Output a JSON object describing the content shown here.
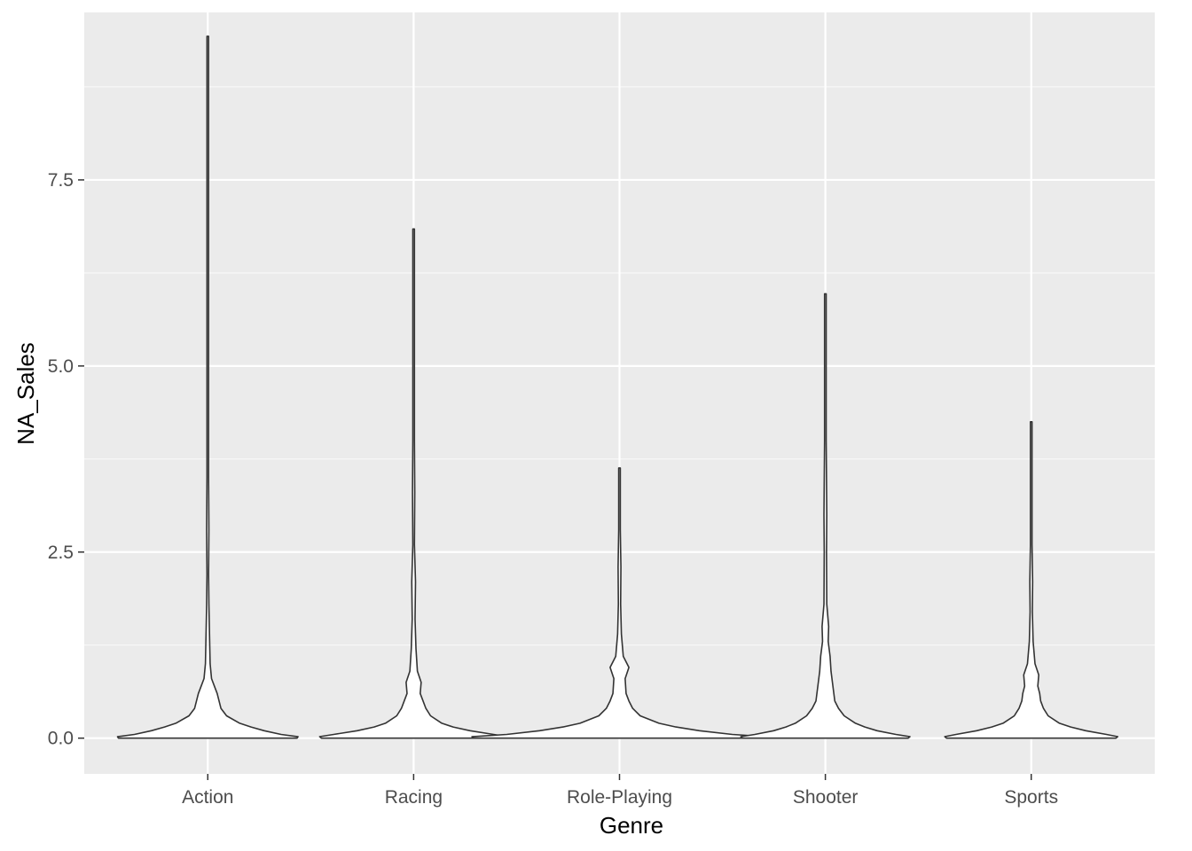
{
  "chart_data": {
    "type": "violin",
    "xlabel": "Genre",
    "ylabel": "NA_Sales",
    "ylim": [
      -0.48,
      9.75
    ],
    "y_ticks": [
      0.0,
      2.5,
      5.0,
      7.5
    ],
    "y_tick_labels": [
      "0.0",
      "2.5",
      "5.0",
      "7.5"
    ],
    "grid": true,
    "legend": "none",
    "colors": {
      "panel_bg": "#ebebeb",
      "grid_major": "#ffffff",
      "violin_fill": "#ffffff",
      "violin_stroke": "#333333",
      "tick_label": "#4d4d4d"
    },
    "categories": [
      "Action",
      "Racing",
      "Role-Playing",
      "Shooter",
      "Sports"
    ],
    "violins": [
      {
        "category": "Action",
        "y_min": 0.0,
        "y_max": 9.43,
        "profile": [
          [
            0.0,
            0.95
          ],
          [
            0.02,
            0.96
          ],
          [
            0.05,
            0.78
          ],
          [
            0.1,
            0.6
          ],
          [
            0.15,
            0.46
          ],
          [
            0.2,
            0.34
          ],
          [
            0.3,
            0.2
          ],
          [
            0.4,
            0.14
          ],
          [
            0.5,
            0.12
          ],
          [
            0.6,
            0.1
          ],
          [
            0.7,
            0.07
          ],
          [
            0.8,
            0.04
          ],
          [
            1.0,
            0.025
          ],
          [
            1.3,
            0.02
          ],
          [
            1.8,
            0.012
          ],
          [
            2.2,
            0.008
          ],
          [
            2.8,
            0.012
          ],
          [
            3.5,
            0.004
          ],
          [
            5.0,
            0.003
          ],
          [
            7.0,
            0.003
          ],
          [
            9.43,
            0.002
          ]
        ]
      },
      {
        "category": "Racing",
        "y_min": 0.0,
        "y_max": 6.84,
        "profile": [
          [
            0.0,
            0.98
          ],
          [
            0.02,
            1.0
          ],
          [
            0.05,
            0.85
          ],
          [
            0.1,
            0.6
          ],
          [
            0.15,
            0.42
          ],
          [
            0.2,
            0.3
          ],
          [
            0.3,
            0.18
          ],
          [
            0.4,
            0.13
          ],
          [
            0.5,
            0.1
          ],
          [
            0.6,
            0.07
          ],
          [
            0.75,
            0.08
          ],
          [
            0.9,
            0.04
          ],
          [
            1.2,
            0.025
          ],
          [
            1.6,
            0.015
          ],
          [
            2.1,
            0.02
          ],
          [
            2.6,
            0.008
          ],
          [
            3.3,
            0.012
          ],
          [
            4.0,
            0.005
          ],
          [
            5.0,
            0.003
          ],
          [
            6.84,
            0.002
          ]
        ]
      },
      {
        "category": "Role-Playing",
        "y_min": 0.0,
        "y_max": 3.63,
        "profile": [
          [
            0.0,
            1.55
          ],
          [
            0.02,
            1.57
          ],
          [
            0.05,
            1.2
          ],
          [
            0.1,
            0.85
          ],
          [
            0.15,
            0.6
          ],
          [
            0.2,
            0.42
          ],
          [
            0.3,
            0.22
          ],
          [
            0.4,
            0.14
          ],
          [
            0.5,
            0.1
          ],
          [
            0.6,
            0.07
          ],
          [
            0.8,
            0.06
          ],
          [
            0.95,
            0.1
          ],
          [
            1.1,
            0.04
          ],
          [
            1.4,
            0.02
          ],
          [
            1.8,
            0.012
          ],
          [
            2.3,
            0.015
          ],
          [
            2.8,
            0.006
          ],
          [
            3.2,
            0.005
          ],
          [
            3.63,
            0.002
          ]
        ]
      },
      {
        "category": "Shooter",
        "y_min": 0.0,
        "y_max": 5.97,
        "profile": [
          [
            0.0,
            0.88
          ],
          [
            0.02,
            0.9
          ],
          [
            0.05,
            0.75
          ],
          [
            0.1,
            0.55
          ],
          [
            0.15,
            0.42
          ],
          [
            0.2,
            0.32
          ],
          [
            0.3,
            0.2
          ],
          [
            0.4,
            0.14
          ],
          [
            0.5,
            0.1
          ],
          [
            0.7,
            0.08
          ],
          [
            0.9,
            0.06
          ],
          [
            1.1,
            0.05
          ],
          [
            1.3,
            0.03
          ],
          [
            1.5,
            0.035
          ],
          [
            1.8,
            0.015
          ],
          [
            2.5,
            0.012
          ],
          [
            3.0,
            0.015
          ],
          [
            4.0,
            0.005
          ],
          [
            5.0,
            0.008
          ],
          [
            5.97,
            0.002
          ]
        ]
      },
      {
        "category": "Sports",
        "y_min": 0.0,
        "y_max": 4.25,
        "profile": [
          [
            0.0,
            0.9
          ],
          [
            0.02,
            0.92
          ],
          [
            0.05,
            0.8
          ],
          [
            0.1,
            0.58
          ],
          [
            0.15,
            0.42
          ],
          [
            0.2,
            0.3
          ],
          [
            0.3,
            0.18
          ],
          [
            0.4,
            0.13
          ],
          [
            0.5,
            0.1
          ],
          [
            0.6,
            0.09
          ],
          [
            0.7,
            0.07
          ],
          [
            0.85,
            0.08
          ],
          [
            1.0,
            0.04
          ],
          [
            1.3,
            0.02
          ],
          [
            1.7,
            0.012
          ],
          [
            2.1,
            0.015
          ],
          [
            2.6,
            0.006
          ],
          [
            3.3,
            0.005
          ],
          [
            4.25,
            0.002
          ]
        ]
      }
    ]
  }
}
